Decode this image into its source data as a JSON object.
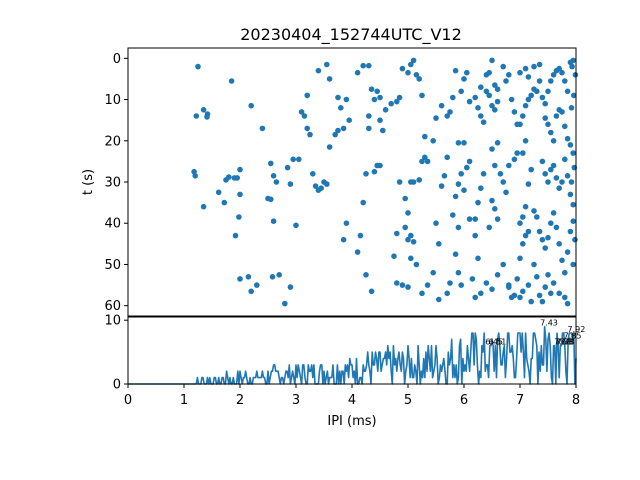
{
  "title": "20230404_152744UTC_V12",
  "colors": {
    "series": "#1f77b4",
    "axes": "#000000"
  },
  "chart_data": [
    {
      "type": "scatter",
      "ylabel": "t (s)",
      "xlim": [
        0,
        8
      ],
      "ylim": [
        62.5,
        -2.5
      ],
      "y_inverted": true,
      "yticks": [
        "0",
        "10",
        "20",
        "30",
        "40",
        "50",
        "60"
      ],
      "ytick_values": [
        0,
        10,
        20,
        30,
        40,
        50,
        60
      ],
      "grid": false,
      "points": [
        [
          1.25,
          2
        ],
        [
          1.22,
          14
        ],
        [
          1.35,
          12.5
        ],
        [
          1.42,
          13.5
        ],
        [
          1.41,
          14.2
        ],
        [
          1.18,
          27.5
        ],
        [
          1.2,
          28.5
        ],
        [
          1.35,
          36
        ],
        [
          1.62,
          32.5
        ],
        [
          1.75,
          29.5
        ],
        [
          1.8,
          28.8
        ],
        [
          1.9,
          29
        ],
        [
          1.95,
          29
        ],
        [
          1.72,
          35
        ],
        [
          1.85,
          5.5
        ],
        [
          2.2,
          11.5
        ],
        [
          2.4,
          17
        ],
        [
          1.98,
          38.5
        ],
        [
          2.0,
          33
        ],
        [
          1.92,
          43
        ],
        [
          2.0,
          53.5
        ],
        [
          2.15,
          53
        ],
        [
          2.2,
          56.5
        ],
        [
          2.3,
          55
        ],
        [
          2.0,
          27
        ],
        [
          2.55,
          25.5
        ],
        [
          2.6,
          28.5
        ],
        [
          2.65,
          30
        ],
        [
          2.5,
          34
        ],
        [
          2.55,
          34.2
        ],
        [
          2.6,
          39.5
        ],
        [
          2.7,
          52.5
        ],
        [
          2.8,
          59.5
        ],
        [
          2.9,
          55.5
        ],
        [
          2.58,
          53
        ],
        [
          2.85,
          26.5
        ],
        [
          2.9,
          30.5
        ],
        [
          2.95,
          24.5
        ],
        [
          3.05,
          24.5
        ],
        [
          3.0,
          40.5
        ],
        [
          3.1,
          13
        ],
        [
          3.15,
          14
        ],
        [
          3.2,
          9
        ],
        [
          3.2,
          17
        ],
        [
          3.25,
          18.5
        ],
        [
          3.3,
          28
        ],
        [
          3.35,
          31
        ],
        [
          3.4,
          32
        ],
        [
          3.45,
          31.5
        ],
        [
          3.5,
          30
        ],
        [
          3.55,
          30.5
        ],
        [
          3.6,
          21.5
        ],
        [
          3.7,
          18.5
        ],
        [
          3.75,
          17.5
        ],
        [
          3.8,
          12
        ],
        [
          3.9,
          10
        ],
        [
          3.95,
          15
        ],
        [
          3.4,
          3
        ],
        [
          3.55,
          1.5
        ],
        [
          3.6,
          5
        ],
        [
          3.75,
          9.5
        ],
        [
          3.85,
          17
        ],
        [
          3.9,
          40
        ],
        [
          3.85,
          44
        ],
        [
          4.1,
          3.5
        ],
        [
          4.2,
          1.8
        ],
        [
          4.3,
          1.8
        ],
        [
          4.35,
          7.5
        ],
        [
          4.4,
          10
        ],
        [
          4.45,
          8
        ],
        [
          4.5,
          9.5
        ],
        [
          4.3,
          14
        ],
        [
          4.4,
          27.5
        ],
        [
          4.45,
          26
        ],
        [
          4.5,
          26
        ],
        [
          4.3,
          17
        ],
        [
          4.25,
          28
        ],
        [
          4.2,
          35
        ],
        [
          4.1,
          47
        ],
        [
          4.15,
          43
        ],
        [
          4.25,
          52.5
        ],
        [
          4.35,
          56.5
        ],
        [
          4.5,
          15
        ],
        [
          4.55,
          17.5
        ],
        [
          4.6,
          12.5
        ],
        [
          4.7,
          11
        ],
        [
          4.8,
          10.5
        ],
        [
          4.85,
          9.5
        ],
        [
          4.9,
          2.5
        ],
        [
          5.0,
          3.5
        ],
        [
          5.05,
          1.5
        ],
        [
          5.1,
          0.5
        ],
        [
          5.15,
          4
        ],
        [
          5.2,
          5
        ],
        [
          5.25,
          9
        ],
        [
          5.3,
          19
        ],
        [
          4.85,
          30
        ],
        [
          4.95,
          34
        ],
        [
          5.0,
          37.5
        ],
        [
          5.05,
          30
        ],
        [
          5.1,
          30
        ],
        [
          5.2,
          29.5
        ],
        [
          5.25,
          25
        ],
        [
          5.3,
          24
        ],
        [
          5.35,
          25
        ],
        [
          4.95,
          41
        ],
        [
          5.0,
          44
        ],
        [
          5.05,
          43
        ],
        [
          5.1,
          44.5
        ],
        [
          4.8,
          42.5
        ],
        [
          4.75,
          48
        ],
        [
          4.8,
          54.5
        ],
        [
          4.9,
          55
        ],
        [
          5.0,
          55.5
        ],
        [
          5.05,
          48.5
        ],
        [
          5.15,
          50
        ],
        [
          5.25,
          57
        ],
        [
          5.35,
          55
        ],
        [
          5.45,
          52
        ],
        [
          5.55,
          58.5
        ],
        [
          5.5,
          40
        ],
        [
          5.55,
          45
        ],
        [
          5.6,
          31
        ],
        [
          5.65,
          28.5
        ],
        [
          5.7,
          24
        ],
        [
          5.45,
          20
        ],
        [
          5.5,
          14.5
        ],
        [
          5.6,
          11.5
        ],
        [
          5.7,
          14
        ],
        [
          5.75,
          13
        ],
        [
          5.8,
          9.5
        ],
        [
          5.85,
          3
        ],
        [
          5.95,
          8
        ],
        [
          6.0,
          5
        ],
        [
          6.05,
          3.5
        ],
        [
          6.1,
          10.5
        ],
        [
          5.9,
          20.5
        ],
        [
          6.0,
          20.5
        ],
        [
          6.05,
          26.5
        ],
        [
          6.1,
          25
        ],
        [
          5.9,
          30.5
        ],
        [
          5.95,
          28
        ],
        [
          6.0,
          32
        ],
        [
          5.85,
          33.5
        ],
        [
          5.8,
          38
        ],
        [
          5.9,
          41
        ],
        [
          5.85,
          47.5
        ],
        [
          5.9,
          52
        ],
        [
          5.95,
          55
        ],
        [
          5.75,
          54.5
        ],
        [
          5.7,
          57
        ],
        [
          6.1,
          39
        ],
        [
          6.2,
          39
        ],
        [
          6.25,
          35
        ],
        [
          6.3,
          31.5
        ],
        [
          6.35,
          28
        ],
        [
          6.2,
          9.5
        ],
        [
          6.25,
          12
        ],
        [
          6.3,
          14
        ],
        [
          6.35,
          15.5
        ],
        [
          6.4,
          8
        ],
        [
          6.45,
          9
        ],
        [
          6.5,
          11.5
        ],
        [
          6.55,
          12.5
        ],
        [
          6.6,
          10.5
        ],
        [
          6.3,
          7
        ],
        [
          6.4,
          4
        ],
        [
          6.5,
          0.5
        ],
        [
          6.45,
          3.5
        ],
        [
          6.55,
          6.5
        ],
        [
          6.6,
          7.5
        ],
        [
          6.7,
          2
        ],
        [
          6.75,
          5.5
        ],
        [
          6.8,
          4
        ],
        [
          6.85,
          10
        ],
        [
          6.9,
          13
        ],
        [
          6.95,
          16
        ],
        [
          6.6,
          20.5
        ],
        [
          6.5,
          22
        ],
        [
          6.55,
          26
        ],
        [
          6.65,
          28
        ],
        [
          6.7,
          30
        ],
        [
          6.75,
          32.5
        ],
        [
          6.8,
          26
        ],
        [
          6.9,
          24.5
        ],
        [
          6.95,
          23
        ],
        [
          6.5,
          34.5
        ],
        [
          6.55,
          36.5
        ],
        [
          6.6,
          39
        ],
        [
          6.45,
          41
        ],
        [
          6.2,
          43
        ],
        [
          6.25,
          48.5
        ],
        [
          6.15,
          53.5
        ],
        [
          6.2,
          58
        ],
        [
          6.3,
          57
        ],
        [
          6.4,
          54.5
        ],
        [
          6.5,
          56
        ],
        [
          6.6,
          52.5
        ],
        [
          6.7,
          50
        ],
        [
          6.8,
          55.5
        ],
        [
          6.9,
          57.5
        ],
        [
          6.95,
          53.5
        ],
        [
          7.0,
          48.5
        ],
        [
          7.05,
          45
        ],
        [
          7.1,
          43
        ],
        [
          7.15,
          42
        ],
        [
          7.0,
          40
        ],
        [
          7.05,
          38.5
        ],
        [
          7.1,
          36
        ],
        [
          7.15,
          30.5
        ],
        [
          7.2,
          27
        ],
        [
          7.05,
          23
        ],
        [
          7.1,
          20
        ],
        [
          7.0,
          16
        ],
        [
          7.05,
          14
        ],
        [
          7.1,
          11.5
        ],
        [
          7.15,
          10
        ],
        [
          7.2,
          9
        ],
        [
          7.25,
          7.5
        ],
        [
          7.3,
          8
        ],
        [
          7.35,
          5.5
        ],
        [
          7.0,
          3.5
        ],
        [
          7.1,
          2.5
        ],
        [
          7.15,
          4.5
        ],
        [
          7.25,
          2
        ],
        [
          7.35,
          1.5
        ],
        [
          7.4,
          9.5
        ],
        [
          7.45,
          11
        ],
        [
          7.5,
          8
        ],
        [
          7.55,
          5.5
        ],
        [
          7.6,
          4
        ],
        [
          7.65,
          3
        ],
        [
          7.7,
          2.5
        ],
        [
          7.75,
          3.5
        ],
        [
          7.8,
          5.5
        ],
        [
          7.85,
          8
        ],
        [
          7.9,
          1
        ],
        [
          7.95,
          0.5
        ],
        [
          7.45,
          14.5
        ],
        [
          7.5,
          16
        ],
        [
          7.55,
          18
        ],
        [
          7.6,
          20
        ],
        [
          7.65,
          14
        ],
        [
          7.7,
          12.5
        ],
        [
          7.75,
          13
        ],
        [
          7.8,
          16.5
        ],
        [
          7.85,
          19.5
        ],
        [
          7.9,
          21
        ],
        [
          7.95,
          23
        ],
        [
          7.4,
          25
        ],
        [
          7.45,
          28
        ],
        [
          7.5,
          30
        ],
        [
          7.55,
          27
        ],
        [
          7.6,
          26
        ],
        [
          7.65,
          29
        ],
        [
          7.7,
          31.5
        ],
        [
          7.75,
          30
        ],
        [
          7.8,
          24.5
        ],
        [
          7.85,
          28.5
        ],
        [
          7.9,
          33
        ],
        [
          7.95,
          35.5
        ],
        [
          7.25,
          37
        ],
        [
          7.3,
          38.5
        ],
        [
          7.35,
          42
        ],
        [
          7.4,
          44
        ],
        [
          7.45,
          46
        ],
        [
          7.5,
          43.5
        ],
        [
          7.55,
          40
        ],
        [
          7.6,
          37.5
        ],
        [
          7.65,
          41
        ],
        [
          7.7,
          45
        ],
        [
          7.75,
          49
        ],
        [
          7.8,
          52
        ],
        [
          7.85,
          47
        ],
        [
          7.9,
          42
        ],
        [
          7.95,
          39.5
        ],
        [
          7.25,
          50
        ],
        [
          7.3,
          53
        ],
        [
          7.35,
          57.5
        ],
        [
          7.4,
          59
        ],
        [
          7.45,
          55.5
        ],
        [
          7.5,
          52.5
        ],
        [
          7.55,
          57
        ],
        [
          7.6,
          54.5
        ],
        [
          7.7,
          57
        ],
        [
          7.8,
          58
        ],
        [
          7.85,
          59.5
        ],
        [
          7.95,
          50
        ],
        [
          7.98,
          44
        ],
        [
          7.92,
          30
        ],
        [
          7.97,
          26.5
        ],
        [
          7.92,
          12
        ],
        [
          7.96,
          9
        ],
        [
          7.99,
          4
        ],
        [
          7.93,
          2
        ],
        [
          6.8,
          55
        ],
        [
          6.85,
          58
        ],
        [
          7.0,
          58
        ],
        [
          7.05,
          56.5
        ],
        [
          7.15,
          55
        ],
        [
          7.2,
          59
        ]
      ]
    },
    {
      "type": "line",
      "xlabel": "IPI (ms)",
      "xlim": [
        0,
        8
      ],
      "ylim": [
        0,
        10.5
      ],
      "xticks": [
        "0",
        "1",
        "2",
        "3",
        "4",
        "5",
        "6",
        "7",
        "8"
      ],
      "xtick_values": [
        0,
        1,
        2,
        3,
        4,
        5,
        6,
        7,
        8
      ],
      "yticks": [
        "0",
        "10"
      ],
      "ytick_values": [
        0,
        10
      ],
      "grid": false,
      "bin_width": 0.02,
      "peaks": [
        {
          "x": 6.45,
          "y": 6,
          "label": "6.45"
        },
        {
          "x": 6.51,
          "y": 6,
          "label": "6.51"
        },
        {
          "x": 7.43,
          "y": 9,
          "label": "7.43"
        },
        {
          "x": 7.68,
          "y": 6,
          "label": "7.68"
        },
        {
          "x": 7.71,
          "y": 6,
          "label": "7.71"
        },
        {
          "x": 7.73,
          "y": 6,
          "label": "7.73"
        },
        {
          "x": 7.8,
          "y": 6,
          "label": "7.8"
        },
        {
          "x": 7.85,
          "y": 7,
          "label": "7.85"
        },
        {
          "x": 7.92,
          "y": 8,
          "label": "7.92"
        }
      ]
    }
  ]
}
